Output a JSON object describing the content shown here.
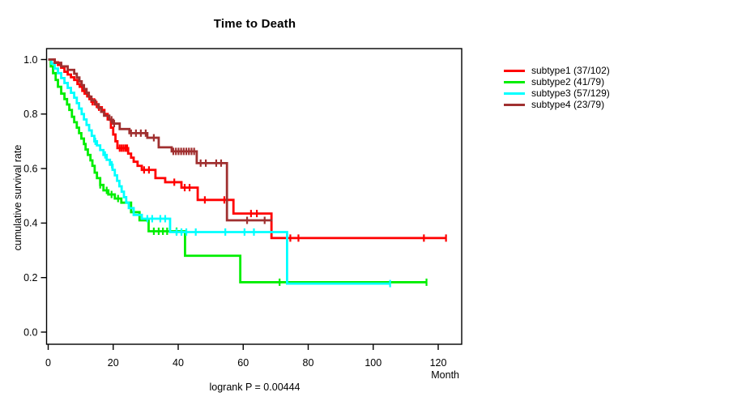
{
  "title": "Time to Death",
  "y_axis": {
    "label": "cumulative survival rate"
  },
  "x_axis": {
    "unit_label": "Month"
  },
  "footnote": "logrank P = 0.00444",
  "chart_data": {
    "type": "line",
    "variant": "kaplan-meier-step",
    "title": "Time to Death",
    "xlabel": "Month",
    "ylabel": "cumulative survival rate",
    "x_ticks": [
      0,
      20,
      40,
      60,
      80,
      100,
      120
    ],
    "y_ticks": [
      0.0,
      0.2,
      0.4,
      0.6,
      0.8,
      1.0
    ],
    "xlim": [
      0,
      127.5
    ],
    "ylim": [
      0,
      1.04
    ],
    "grid": false,
    "legend_position": "right-outside",
    "annotation": "logrank P = 0.00444",
    "axis_color": "#000000",
    "series": [
      {
        "name": "subtype1",
        "legend_label": "subtype1 (37/102)",
        "events": "37/102",
        "color": "#FF0000",
        "end_month": 122.4,
        "steps": [
          [
            0,
            1
          ],
          [
            2,
            0.99
          ],
          [
            3,
            0.98
          ],
          [
            4,
            0.97
          ],
          [
            5,
            0.955
          ],
          [
            6,
            0.945
          ],
          [
            7,
            0.935
          ],
          [
            8,
            0.925
          ],
          [
            9,
            0.91
          ],
          [
            9.7,
            0.9
          ],
          [
            10.5,
            0.885
          ],
          [
            11.2,
            0.875
          ],
          [
            12,
            0.865
          ],
          [
            12.7,
            0.855
          ],
          [
            13.3,
            0.845
          ],
          [
            14.5,
            0.835
          ],
          [
            15.5,
            0.825
          ],
          [
            16.5,
            0.815
          ],
          [
            17.3,
            0.8
          ],
          [
            18.3,
            0.78
          ],
          [
            19.3,
            0.75
          ],
          [
            20,
            0.725
          ],
          [
            20.7,
            0.7
          ],
          [
            21.3,
            0.675
          ],
          [
            24.6,
            0.655
          ],
          [
            25.5,
            0.64
          ],
          [
            26.3,
            0.625
          ],
          [
            27.5,
            0.61
          ],
          [
            28.8,
            0.595
          ],
          [
            33,
            0.565
          ],
          [
            36,
            0.55
          ],
          [
            41,
            0.53
          ],
          [
            46,
            0.485
          ],
          [
            57,
            0.435
          ],
          [
            68.7,
            0.345
          ]
        ],
        "censor_ticks": [
          13.6,
          14.2,
          14.9,
          15.6,
          22,
          22.6,
          23.2,
          23.8,
          24.3,
          29.5,
          31,
          38.8,
          42,
          43.5,
          48.2,
          54.2,
          62.4,
          64.2,
          74.5,
          77,
          115.6,
          122.4
        ]
      },
      {
        "name": "subtype2",
        "legend_label": "subtype2 (41/79)",
        "events": "41/79",
        "color": "#00EE00",
        "end_month": 116.4,
        "steps": [
          [
            0,
            1
          ],
          [
            0.8,
            0.975
          ],
          [
            1.5,
            0.95
          ],
          [
            2.3,
            0.925
          ],
          [
            3,
            0.9
          ],
          [
            4,
            0.875
          ],
          [
            5,
            0.855
          ],
          [
            5.8,
            0.835
          ],
          [
            6.5,
            0.815
          ],
          [
            7.3,
            0.79
          ],
          [
            8,
            0.77
          ],
          [
            8.8,
            0.75
          ],
          [
            9.5,
            0.73
          ],
          [
            10.2,
            0.71
          ],
          [
            11,
            0.69
          ],
          [
            11.5,
            0.67
          ],
          [
            12.2,
            0.65
          ],
          [
            13,
            0.63
          ],
          [
            13.6,
            0.61
          ],
          [
            14.3,
            0.585
          ],
          [
            15,
            0.565
          ],
          [
            16,
            0.54
          ],
          [
            17,
            0.52
          ],
          [
            18.5,
            0.505
          ],
          [
            20.5,
            0.49
          ],
          [
            22.5,
            0.475
          ],
          [
            25.5,
            0.44
          ],
          [
            28.1,
            0.41
          ],
          [
            30.9,
            0.37
          ],
          [
            42.1,
            0.28
          ],
          [
            59.1,
            0.183
          ]
        ],
        "censor_ticks": [
          16,
          18,
          19.5,
          21.5,
          32.5,
          34,
          35.3,
          36.6,
          39.5,
          71.2,
          116.4
        ]
      },
      {
        "name": "subtype3",
        "legend_label": "subtype3 (57/129)",
        "events": "57/129",
        "color": "#00FFFF",
        "end_month": 105.3,
        "steps": [
          [
            0,
            1
          ],
          [
            1,
            0.985
          ],
          [
            2,
            0.967
          ],
          [
            3,
            0.95
          ],
          [
            4,
            0.932
          ],
          [
            5,
            0.914
          ],
          [
            6,
            0.896
          ],
          [
            7,
            0.878
          ],
          [
            8,
            0.86
          ],
          [
            8.8,
            0.84
          ],
          [
            9.5,
            0.82
          ],
          [
            10.3,
            0.8
          ],
          [
            11,
            0.78
          ],
          [
            11.8,
            0.76
          ],
          [
            12.6,
            0.74
          ],
          [
            13.4,
            0.72
          ],
          [
            14.2,
            0.7
          ],
          [
            15,
            0.685
          ],
          [
            16,
            0.668
          ],
          [
            17,
            0.65
          ],
          [
            18,
            0.632
          ],
          [
            19,
            0.614
          ],
          [
            19.8,
            0.595
          ],
          [
            20.5,
            0.575
          ],
          [
            21.2,
            0.555
          ],
          [
            21.9,
            0.535
          ],
          [
            22.6,
            0.515
          ],
          [
            23.3,
            0.495
          ],
          [
            24,
            0.475
          ],
          [
            24.8,
            0.455
          ],
          [
            26.3,
            0.43
          ],
          [
            28.8,
            0.416
          ],
          [
            37.5,
            0.367
          ],
          [
            73.5,
            0.178
          ]
        ],
        "censor_ticks": [
          14.5,
          17.5,
          19.6,
          30.5,
          32,
          34.5,
          36,
          39.5,
          41,
          42.5,
          45.4,
          54.5,
          60.4,
          63.3,
          105.2
        ]
      },
      {
        "name": "subtype4",
        "legend_label": "subtype4 (23/79)",
        "events": "23/79",
        "color": "#A03030",
        "end_month": 69,
        "steps": [
          [
            0,
            1
          ],
          [
            2,
            0.988
          ],
          [
            4,
            0.975
          ],
          [
            6,
            0.962
          ],
          [
            8,
            0.948
          ],
          [
            8.8,
            0.934
          ],
          [
            9.6,
            0.92
          ],
          [
            10.3,
            0.906
          ],
          [
            11,
            0.892
          ],
          [
            11.8,
            0.878
          ],
          [
            12.5,
            0.864
          ],
          [
            13.3,
            0.85
          ],
          [
            14.5,
            0.836
          ],
          [
            15.5,
            0.822
          ],
          [
            16.3,
            0.808
          ],
          [
            17.2,
            0.794
          ],
          [
            18.8,
            0.779
          ],
          [
            20,
            0.765
          ],
          [
            22,
            0.745
          ],
          [
            25,
            0.73
          ],
          [
            30.5,
            0.713
          ],
          [
            34,
            0.678
          ],
          [
            38,
            0.663
          ],
          [
            45.7,
            0.62
          ],
          [
            55,
            0.41
          ]
        ],
        "censor_ticks": [
          19.5,
          20.3,
          25.5,
          27,
          28.5,
          30,
          32.5,
          38.5,
          39.3,
          40.1,
          40.9,
          41.7,
          42.5,
          43.3,
          44.1,
          44.9,
          46.9,
          48.5,
          51.7,
          53.2,
          61.2,
          66.6
        ]
      }
    ]
  }
}
